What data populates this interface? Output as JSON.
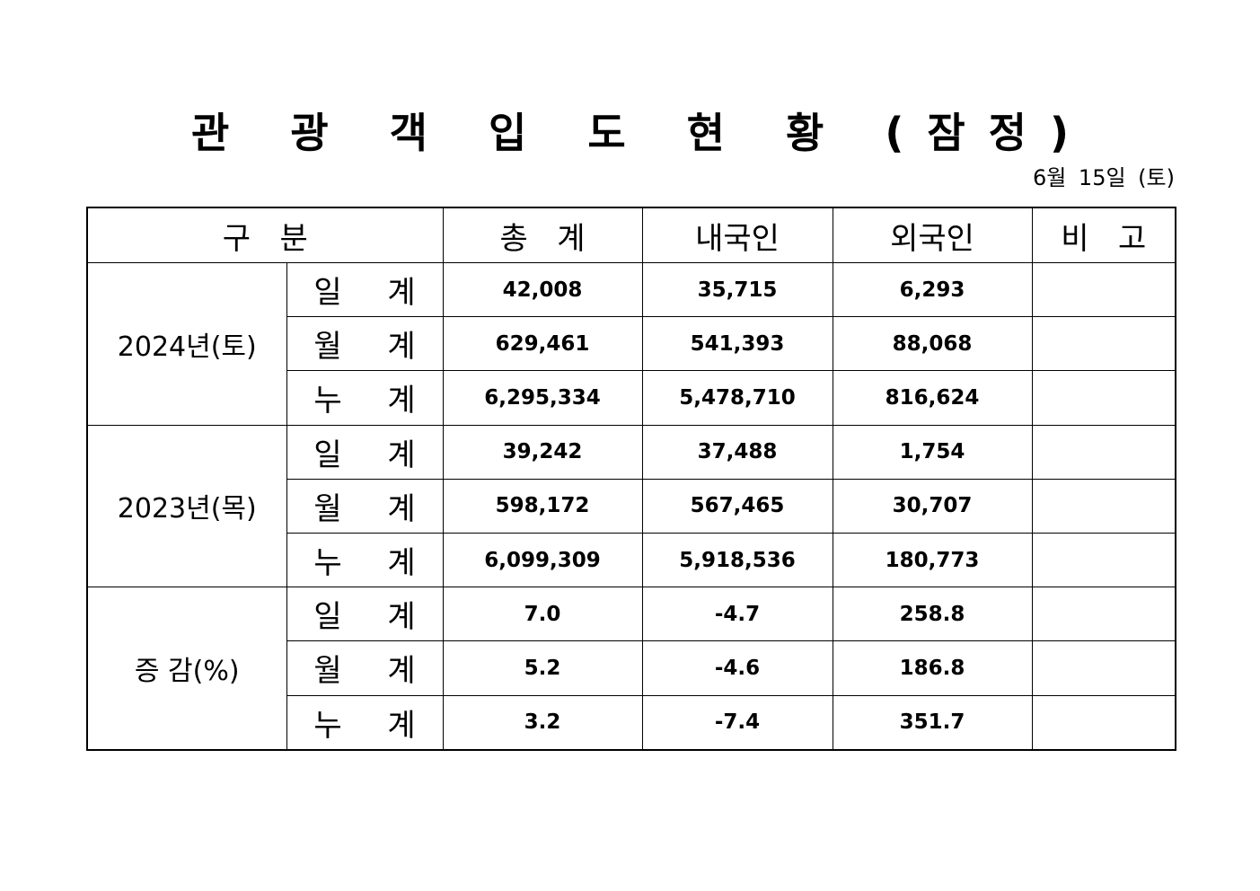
{
  "title": "관 광 객 입 도 현 황 (잠정)",
  "date": "6월 15일 (토)",
  "table": {
    "headers": [
      "구   분",
      "총   계",
      "내국인",
      "외국인",
      "비   고"
    ],
    "groups": [
      {
        "label": "2024년(토)",
        "rows": [
          {
            "sub": "일 계",
            "total": "42,008",
            "domestic": "35,715",
            "foreign": "6,293",
            "note": ""
          },
          {
            "sub": "월 계",
            "total": "629,461",
            "domestic": "541,393",
            "foreign": "88,068",
            "note": ""
          },
          {
            "sub": "누 계",
            "total": "6,295,334",
            "domestic": "5,478,710",
            "foreign": "816,624",
            "note": ""
          }
        ]
      },
      {
        "label": "2023년(목)",
        "rows": [
          {
            "sub": "일 계",
            "total": "39,242",
            "domestic": "37,488",
            "foreign": "1,754",
            "note": ""
          },
          {
            "sub": "월 계",
            "total": "598,172",
            "domestic": "567,465",
            "foreign": "30,707",
            "note": ""
          },
          {
            "sub": "누 계",
            "total": "6,099,309",
            "domestic": "5,918,536",
            "foreign": "180,773",
            "note": ""
          }
        ]
      },
      {
        "label": "증 감(%)",
        "rows": [
          {
            "sub": "일 계",
            "total": "7.0",
            "domestic": "-4.7",
            "foreign": "258.8",
            "note": ""
          },
          {
            "sub": "월 계",
            "total": "5.2",
            "domestic": "-4.6",
            "foreign": "186.8",
            "note": ""
          },
          {
            "sub": "누 계",
            "total": "3.2",
            "domestic": "-7.4",
            "foreign": "351.7",
            "note": ""
          }
        ]
      }
    ]
  }
}
